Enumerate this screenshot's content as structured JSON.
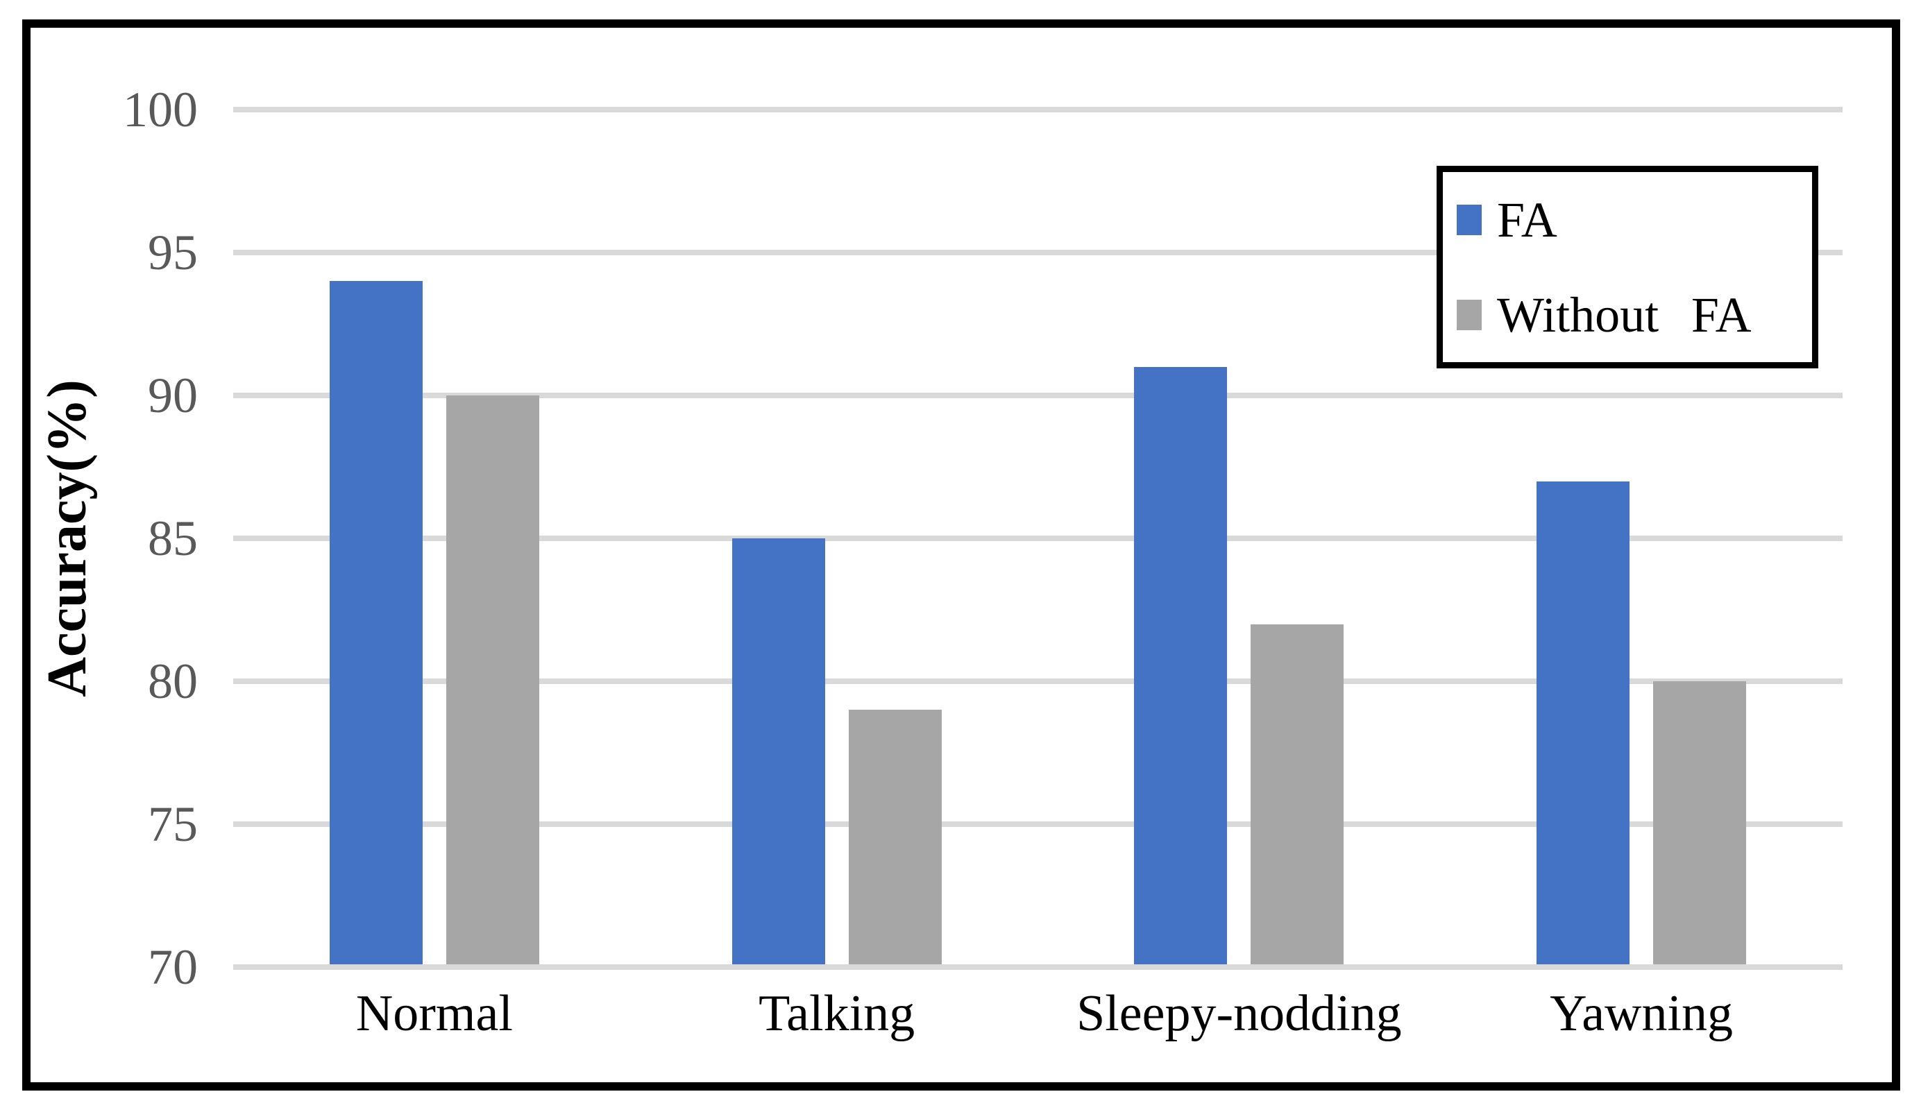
{
  "figure": {
    "background": "#FFFFFF",
    "frame_color": "#000000",
    "gridline_color": "#D9D9D9",
    "tick_label_color": "#595959",
    "text_color": "#000000"
  },
  "chart_data": {
    "type": "bar",
    "title": "",
    "categories": [
      "Normal",
      "Talking",
      "Sleepy-nodding",
      "Yawning"
    ],
    "series": [
      {
        "name": "FA",
        "color": "#4472C4",
        "values": [
          94,
          85,
          91,
          87
        ]
      },
      {
        "name": "Without FA",
        "color": "#A6A6A6",
        "values": [
          90,
          79,
          82,
          80
        ]
      }
    ],
    "xlabel": "",
    "ylabel": "Accuracy(%)",
    "ylim": [
      70,
      100
    ],
    "yticks": [
      100,
      95,
      90,
      85,
      80,
      75,
      70
    ],
    "ytick_step": 5,
    "grid": true,
    "legend": {
      "position": "top-right",
      "entries": [
        "FA",
        "Without FA"
      ]
    }
  }
}
